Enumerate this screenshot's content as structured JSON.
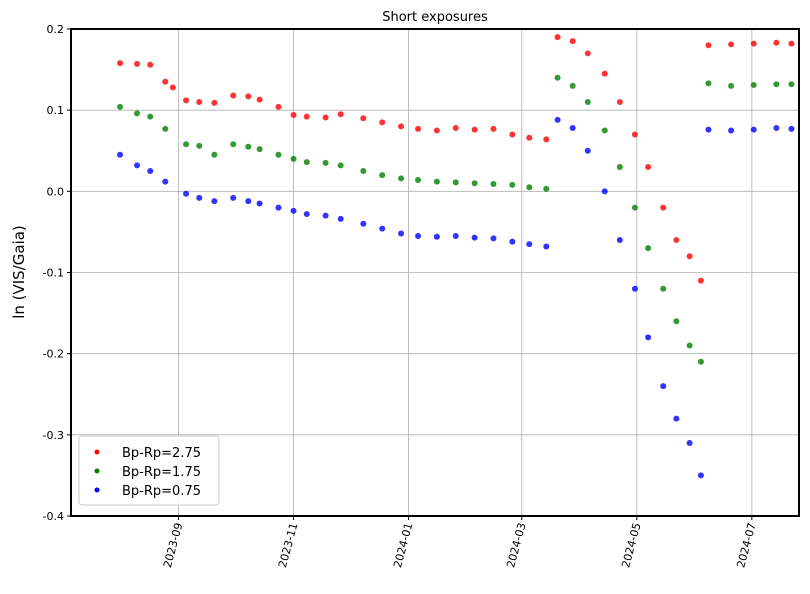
{
  "chart_data": {
    "type": "scatter",
    "title": "Short exposures",
    "xlabel": "",
    "ylabel": "ln (VIS/Gaia)",
    "xlim": [
      "2023-07-06",
      "2024-07-26"
    ],
    "ylim": [
      -0.4,
      0.2
    ],
    "x_ticks": [
      "2023-09",
      "2023-11",
      "2024-01",
      "2024-03",
      "2024-05",
      "2024-07"
    ],
    "y_ticks": [
      "-0.4",
      "-0.3",
      "-0.2",
      "-0.1",
      "0.0",
      "0.1",
      "0.2"
    ],
    "grid": true,
    "legend_position": "lower-left",
    "series": [
      {
        "name": "Bp-Rp=2.75",
        "color": "#ff0000",
        "points": [
          [
            "2023-08-01",
            0.158
          ],
          [
            "2023-08-10",
            0.157
          ],
          [
            "2023-08-17",
            0.156
          ],
          [
            "2023-08-25",
            0.135
          ],
          [
            "2023-08-29",
            0.128
          ],
          [
            "2023-09-05",
            0.112
          ],
          [
            "2023-09-12",
            0.11
          ],
          [
            "2023-09-20",
            0.109
          ],
          [
            "2023-09-30",
            0.118
          ],
          [
            "2023-10-08",
            0.117
          ],
          [
            "2023-10-14",
            0.113
          ],
          [
            "2023-10-24",
            0.104
          ],
          [
            "2023-11-01",
            0.094
          ],
          [
            "2023-11-08",
            0.092
          ],
          [
            "2023-11-18",
            0.091
          ],
          [
            "2023-11-26",
            0.095
          ],
          [
            "2023-12-08",
            0.09
          ],
          [
            "2023-12-18",
            0.085
          ],
          [
            "2023-12-28",
            0.08
          ],
          [
            "2024-01-06",
            0.077
          ],
          [
            "2024-01-16",
            0.075
          ],
          [
            "2024-01-26",
            0.078
          ],
          [
            "2024-02-05",
            0.076
          ],
          [
            "2024-02-15",
            0.077
          ],
          [
            "2024-02-25",
            0.07
          ],
          [
            "2024-03-05",
            0.066
          ],
          [
            "2024-03-14",
            0.064
          ],
          [
            "2024-03-20",
            0.19
          ],
          [
            "2024-03-28",
            0.185
          ],
          [
            "2024-04-05",
            0.17
          ],
          [
            "2024-04-14",
            0.145
          ],
          [
            "2024-04-22",
            0.11
          ],
          [
            "2024-04-30",
            0.07
          ],
          [
            "2024-05-07",
            0.03
          ],
          [
            "2024-05-15",
            -0.02
          ],
          [
            "2024-05-22",
            -0.06
          ],
          [
            "2024-05-29",
            -0.08
          ],
          [
            "2024-06-04",
            -0.11
          ],
          [
            "2024-06-08",
            0.18
          ],
          [
            "2024-06-20",
            0.181
          ],
          [
            "2024-07-02",
            0.182
          ],
          [
            "2024-07-14",
            0.183
          ],
          [
            "2024-07-22",
            0.182
          ]
        ]
      },
      {
        "name": "Bp-Rp=1.75",
        "color": "#008000",
        "points": [
          [
            "2023-08-01",
            0.104
          ],
          [
            "2023-08-10",
            0.096
          ],
          [
            "2023-08-17",
            0.092
          ],
          [
            "2023-08-25",
            0.077
          ],
          [
            "2023-09-05",
            0.058
          ],
          [
            "2023-09-12",
            0.056
          ],
          [
            "2023-09-20",
            0.045
          ],
          [
            "2023-09-30",
            0.058
          ],
          [
            "2023-10-08",
            0.055
          ],
          [
            "2023-10-14",
            0.052
          ],
          [
            "2023-10-24",
            0.045
          ],
          [
            "2023-11-01",
            0.04
          ],
          [
            "2023-11-08",
            0.036
          ],
          [
            "2023-11-18",
            0.035
          ],
          [
            "2023-11-26",
            0.032
          ],
          [
            "2023-12-08",
            0.025
          ],
          [
            "2023-12-18",
            0.02
          ],
          [
            "2023-12-28",
            0.016
          ],
          [
            "2024-01-06",
            0.014
          ],
          [
            "2024-01-16",
            0.012
          ],
          [
            "2024-01-26",
            0.011
          ],
          [
            "2024-02-05",
            0.01
          ],
          [
            "2024-02-15",
            0.009
          ],
          [
            "2024-02-25",
            0.008
          ],
          [
            "2024-03-05",
            0.005
          ],
          [
            "2024-03-14",
            0.003
          ],
          [
            "2024-03-20",
            0.14
          ],
          [
            "2024-03-28",
            0.13
          ],
          [
            "2024-04-05",
            0.11
          ],
          [
            "2024-04-14",
            0.075
          ],
          [
            "2024-04-22",
            0.03
          ],
          [
            "2024-04-30",
            -0.02
          ],
          [
            "2024-05-07",
            -0.07
          ],
          [
            "2024-05-15",
            -0.12
          ],
          [
            "2024-05-22",
            -0.16
          ],
          [
            "2024-05-29",
            -0.19
          ],
          [
            "2024-06-04",
            -0.21
          ],
          [
            "2024-06-08",
            0.133
          ],
          [
            "2024-06-20",
            0.13
          ],
          [
            "2024-07-02",
            0.131
          ],
          [
            "2024-07-14",
            0.132
          ],
          [
            "2024-07-22",
            0.132
          ]
        ]
      },
      {
        "name": "Bp-Rp=0.75",
        "color": "#0000ff",
        "points": [
          [
            "2023-08-01",
            0.045
          ],
          [
            "2023-08-10",
            0.032
          ],
          [
            "2023-08-17",
            0.025
          ],
          [
            "2023-08-25",
            0.012
          ],
          [
            "2023-09-05",
            -0.003
          ],
          [
            "2023-09-12",
            -0.008
          ],
          [
            "2023-09-20",
            -0.012
          ],
          [
            "2023-09-30",
            -0.008
          ],
          [
            "2023-10-08",
            -0.012
          ],
          [
            "2023-10-14",
            -0.015
          ],
          [
            "2023-10-24",
            -0.02
          ],
          [
            "2023-11-01",
            -0.024
          ],
          [
            "2023-11-08",
            -0.028
          ],
          [
            "2023-11-18",
            -0.03
          ],
          [
            "2023-11-26",
            -0.034
          ],
          [
            "2023-12-08",
            -0.04
          ],
          [
            "2023-12-18",
            -0.046
          ],
          [
            "2023-12-28",
            -0.052
          ],
          [
            "2024-01-06",
            -0.055
          ],
          [
            "2024-01-16",
            -0.056
          ],
          [
            "2024-01-26",
            -0.055
          ],
          [
            "2024-02-05",
            -0.057
          ],
          [
            "2024-02-15",
            -0.058
          ],
          [
            "2024-02-25",
            -0.062
          ],
          [
            "2024-03-05",
            -0.065
          ],
          [
            "2024-03-14",
            -0.068
          ],
          [
            "2024-03-20",
            0.088
          ],
          [
            "2024-03-28",
            0.078
          ],
          [
            "2024-04-05",
            0.05
          ],
          [
            "2024-04-14",
            0.0
          ],
          [
            "2024-04-22",
            -0.06
          ],
          [
            "2024-04-30",
            -0.12
          ],
          [
            "2024-05-07",
            -0.18
          ],
          [
            "2024-05-15",
            -0.24
          ],
          [
            "2024-05-22",
            -0.28
          ],
          [
            "2024-05-29",
            -0.31
          ],
          [
            "2024-06-04",
            -0.35
          ],
          [
            "2024-06-08",
            0.076
          ],
          [
            "2024-06-20",
            0.075
          ],
          [
            "2024-07-02",
            0.076
          ],
          [
            "2024-07-14",
            0.078
          ],
          [
            "2024-07-22",
            0.077
          ]
        ]
      }
    ]
  }
}
